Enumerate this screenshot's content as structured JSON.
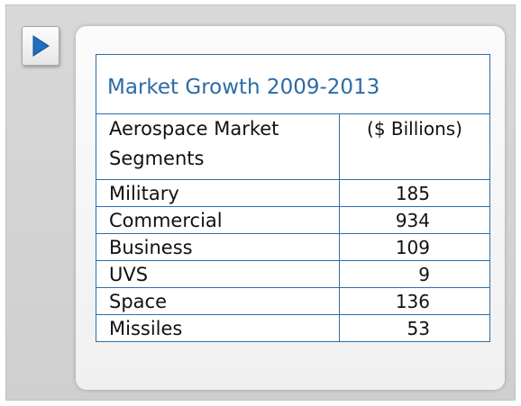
{
  "colors": {
    "accent": "#2c6aa6",
    "border": "#2d6ea8",
    "play_icon": "#1f6fc1"
  },
  "nav": {
    "icon": "play-icon"
  },
  "table": {
    "title": "Market Growth 2009-2013",
    "header_segment": "Aerospace Market Segments",
    "header_value": "($ Billions)",
    "rows": [
      {
        "segment": "Military",
        "value": "185"
      },
      {
        "segment": "Commercial",
        "value": "934"
      },
      {
        "segment": "Business",
        "value": "109"
      },
      {
        "segment": "UVS",
        "value": "9"
      },
      {
        "segment": "Space",
        "value": "136"
      },
      {
        "segment": "Missiles",
        "value": "53"
      }
    ]
  }
}
